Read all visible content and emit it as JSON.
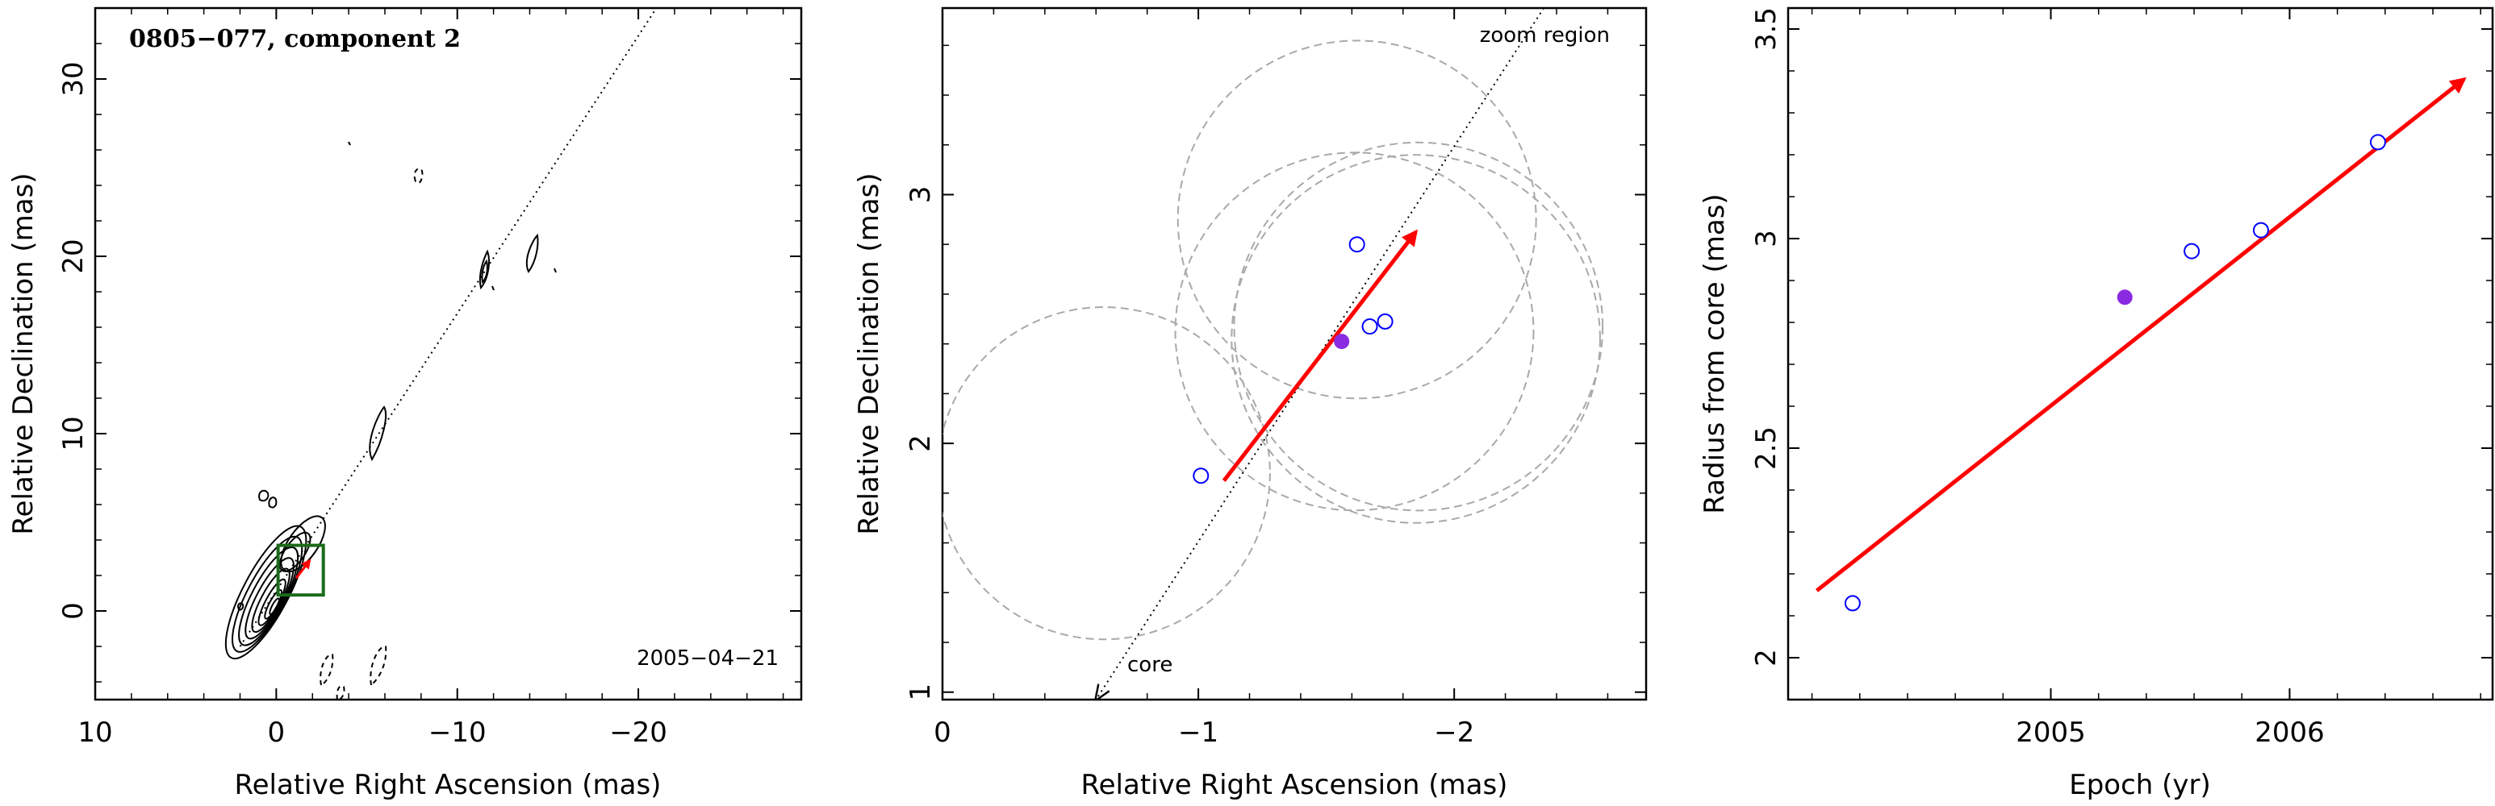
{
  "chart_data": [
    {
      "type": "contour",
      "title": "0805−077, component 2",
      "epoch_label": "2005−04−21",
      "xlabel": "Relative Right Ascension (mas)",
      "ylabel": "Relative Declination (mas)",
      "xlim": [
        10,
        -29
      ],
      "ylim": [
        -5,
        34
      ],
      "xticks": [
        10,
        0,
        -10,
        -20
      ],
      "xtick_labels": [
        "10",
        "0",
        "−10",
        "−20"
      ],
      "yticks": [
        0,
        10,
        20,
        30
      ],
      "ytick_labels": [
        "0",
        "10",
        "20",
        "30"
      ],
      "zoom_box": {
        "x": [
          -2.6,
          -0.1
        ],
        "y": [
          0.9,
          3.7
        ]
      },
      "jet_line": {
        "x": [
          2,
          -21
        ],
        "y": [
          -2,
          34
        ]
      },
      "vector": {
        "from": [
          -1.1,
          1.85
        ],
        "to": [
          -1.85,
          2.85
        ]
      }
    },
    {
      "type": "scatter",
      "xlabel": "Relative Right Ascension (mas)",
      "ylabel": "Relative Declination (mas)",
      "annotations": {
        "zoom": "zoom region",
        "core": "core"
      },
      "xlim": [
        0,
        -2.75
      ],
      "ylim": [
        0.97,
        3.75
      ],
      "xticks": [
        0,
        -1,
        -2
      ],
      "xtick_labels": [
        "0",
        "−1",
        "−2"
      ],
      "yticks": [
        1,
        2,
        3
      ],
      "ytick_labels": [
        "1",
        "2",
        "3"
      ],
      "points_open": [
        {
          "x": -1.01,
          "y": 1.87
        },
        {
          "x": -1.62,
          "y": 2.8
        },
        {
          "x": -1.67,
          "y": 2.47
        },
        {
          "x": -1.73,
          "y": 2.49
        }
      ],
      "point_filled": {
        "x": -1.56,
        "y": 2.41
      },
      "circles": [
        {
          "cx": -0.63,
          "cy": 1.88,
          "r": 0.65
        },
        {
          "cx": -1.61,
          "cy": 2.45,
          "r": 0.7
        },
        {
          "cx": -1.86,
          "cy": 2.47,
          "r": 0.72
        },
        {
          "cx": -1.85,
          "cy": 2.42,
          "r": 0.72
        },
        {
          "cx": -1.62,
          "cy": 2.9,
          "r": 0.7
        }
      ],
      "jet_line": {
        "x": [
          -0.6,
          -2.35
        ],
        "y": [
          0.97,
          3.75
        ]
      },
      "vector": {
        "from": [
          -1.1,
          1.85
        ],
        "to": [
          -1.85,
          2.85
        ]
      },
      "colors": {
        "open": "#0000ff",
        "filled": "#8a2be2",
        "vector": "#ff0000",
        "circles": "#a9a9a9"
      }
    },
    {
      "type": "scatter",
      "xlabel": "Epoch (yr)",
      "ylabel": "Radius from core (mas)",
      "xlim": [
        2003.9,
        2006.85
      ],
      "ylim": [
        1.9,
        3.55
      ],
      "xticks": [
        2005,
        2006
      ],
      "xtick_labels": [
        "2005",
        "2006"
      ],
      "yticks": [
        2,
        2.5,
        3,
        3.5
      ],
      "ytick_labels": [
        "2",
        "2.5",
        "3",
        "3.5"
      ],
      "points_open": [
        {
          "x": 2004.17,
          "y": 2.13
        },
        {
          "x": 2005.59,
          "y": 2.97
        },
        {
          "x": 2005.88,
          "y": 3.02
        },
        {
          "x": 2006.37,
          "y": 3.23
        }
      ],
      "point_filled": {
        "x": 2005.31,
        "y": 2.86
      },
      "fit_line": {
        "x": [
          2004.02,
          2006.73
        ],
        "y": [
          2.16,
          3.38
        ]
      },
      "colors": {
        "open": "#0000ff",
        "filled": "#8a2be2",
        "fit": "#ff0000"
      }
    }
  ]
}
